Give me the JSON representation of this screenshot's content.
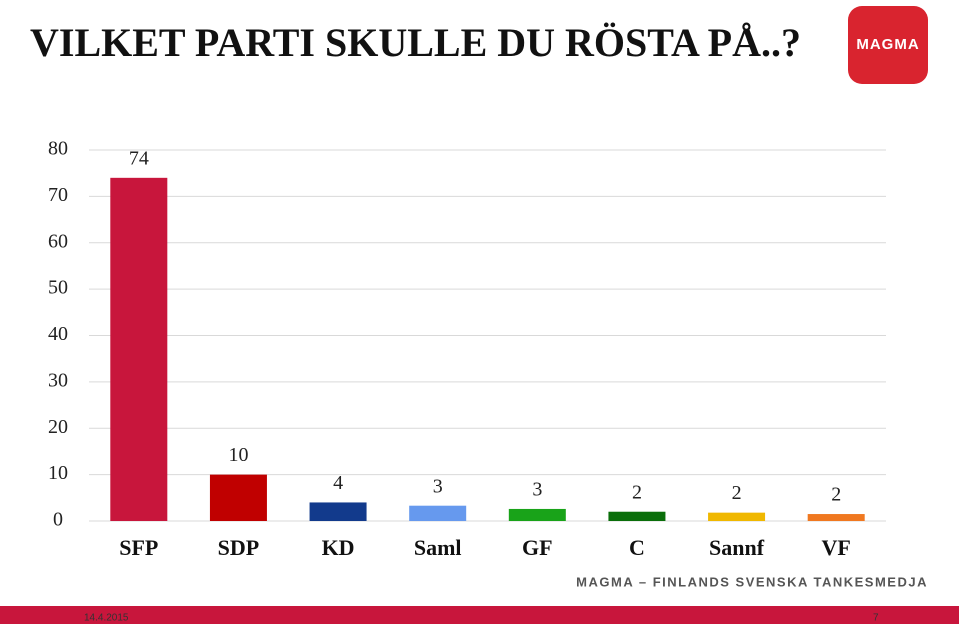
{
  "chart_data": {
    "type": "bar",
    "title": "VILKET PARTI SKULLE DU RÖSTA PÅ..?",
    "categories": [
      "SFP",
      "SDP",
      "KD",
      "Saml",
      "GF",
      "C",
      "Sannf",
      "VF"
    ],
    "values": [
      74,
      10,
      4,
      3.3,
      2.6,
      2,
      1.8,
      1.5
    ],
    "value_labels": [
      "74",
      "10",
      "4",
      "3",
      "3",
      "2",
      "2",
      "2"
    ],
    "colors": [
      "#c8163c",
      "#c00000",
      "#123a8c",
      "#6699ee",
      "#19a319",
      "#0a6e0a",
      "#f0b800",
      "#f07820"
    ],
    "ylim": [
      0,
      80
    ],
    "yticks": [
      0,
      10,
      20,
      30,
      40,
      50,
      60,
      70,
      80
    ],
    "grid": true
  },
  "logo": "MAGMA",
  "tagline": "MAGMA – FINLANDS SVENSKA TANKESMEDJA",
  "date": "14.4.2015",
  "page_number": "7"
}
